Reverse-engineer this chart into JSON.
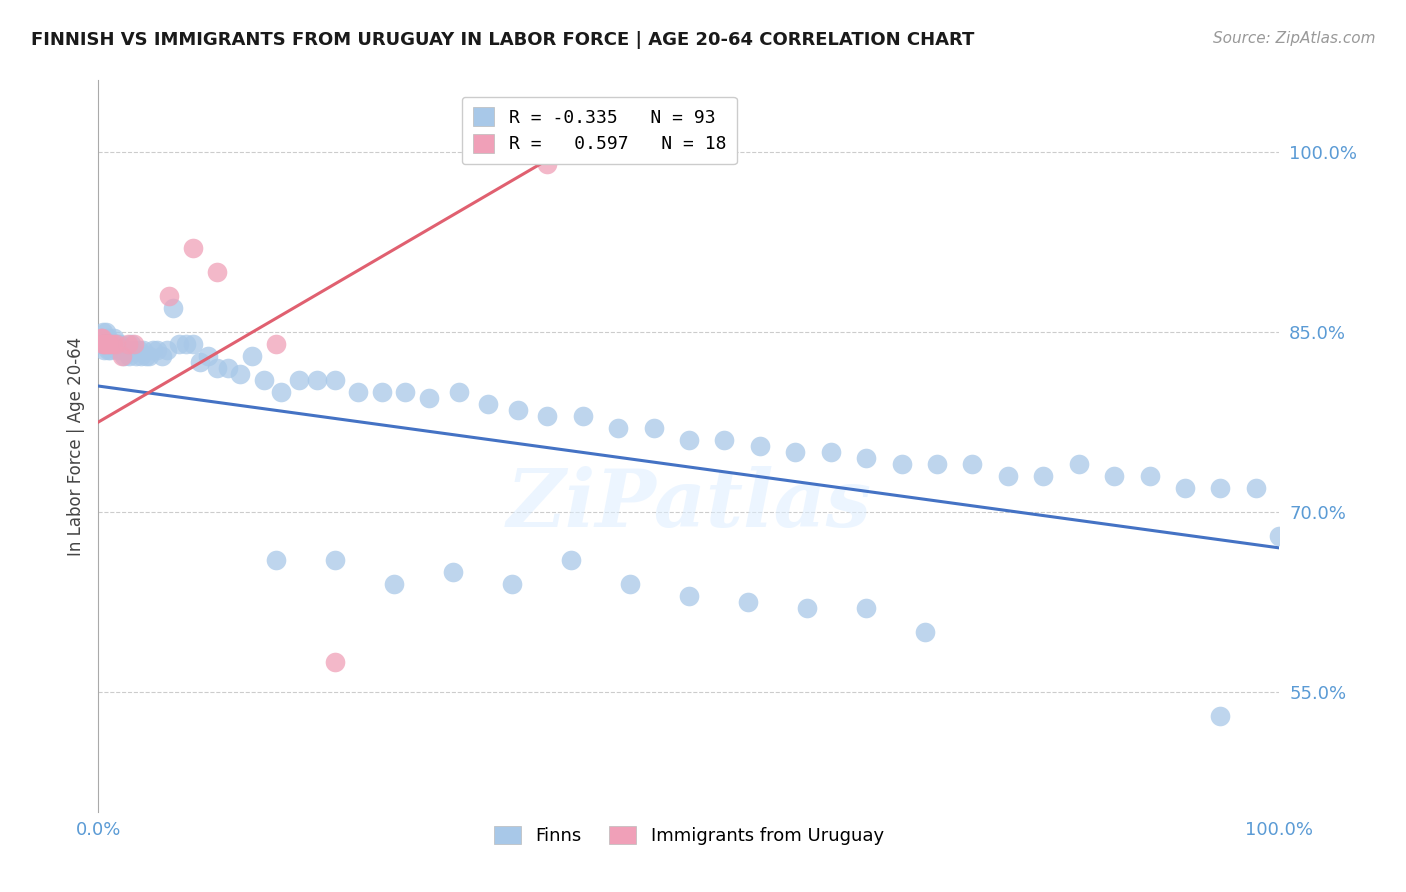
{
  "title": "FINNISH VS IMMIGRANTS FROM URUGUAY IN LABOR FORCE | AGE 20-64 CORRELATION CHART",
  "source": "Source: ZipAtlas.com",
  "ylabel": "In Labor Force | Age 20-64",
  "xlim": [
    0.0,
    1.0
  ],
  "ylim": [
    0.45,
    1.06
  ],
  "yticks": [
    0.55,
    0.7,
    0.85,
    1.0
  ],
  "ytick_labels": [
    "55.0%",
    "70.0%",
    "85.0%",
    "100.0%"
  ],
  "xticks": [
    0.0,
    1.0
  ],
  "xtick_labels": [
    "0.0%",
    "100.0%"
  ],
  "finns_color": "#a8c8e8",
  "uruguay_color": "#f0a0b8",
  "finns_line_color": "#4472c4",
  "uruguay_line_color": "#e06070",
  "watermark": "ZiPatlas",
  "finns_trendline_x": [
    0.0,
    1.0
  ],
  "finns_trendline_y": [
    0.805,
    0.67
  ],
  "uruguay_trendline_x": [
    0.0,
    0.4
  ],
  "uruguay_trendline_y": [
    0.775,
    1.005
  ],
  "finns_x": [
    0.002,
    0.003,
    0.004,
    0.005,
    0.005,
    0.006,
    0.006,
    0.007,
    0.008,
    0.008,
    0.009,
    0.01,
    0.011,
    0.012,
    0.013,
    0.014,
    0.015,
    0.016,
    0.017,
    0.018,
    0.02,
    0.022,
    0.024,
    0.026,
    0.028,
    0.03,
    0.032,
    0.034,
    0.036,
    0.038,
    0.04,
    0.043,
    0.046,
    0.05,
    0.054,
    0.058,
    0.063,
    0.068,
    0.074,
    0.08,
    0.086,
    0.093,
    0.1,
    0.11,
    0.12,
    0.13,
    0.14,
    0.155,
    0.17,
    0.185,
    0.2,
    0.22,
    0.24,
    0.26,
    0.28,
    0.305,
    0.33,
    0.355,
    0.38,
    0.41,
    0.44,
    0.47,
    0.5,
    0.53,
    0.56,
    0.59,
    0.62,
    0.65,
    0.68,
    0.71,
    0.74,
    0.77,
    0.8,
    0.83,
    0.86,
    0.89,
    0.92,
    0.95,
    0.98,
    1.0,
    0.15,
    0.2,
    0.25,
    0.3,
    0.35,
    0.4,
    0.45,
    0.5,
    0.55,
    0.6,
    0.65,
    0.7,
    0.95
  ],
  "finns_y": [
    0.84,
    0.845,
    0.85,
    0.84,
    0.835,
    0.85,
    0.84,
    0.84,
    0.845,
    0.835,
    0.84,
    0.835,
    0.84,
    0.84,
    0.845,
    0.84,
    0.84,
    0.835,
    0.84,
    0.84,
    0.835,
    0.83,
    0.835,
    0.83,
    0.84,
    0.835,
    0.83,
    0.835,
    0.83,
    0.835,
    0.83,
    0.83,
    0.835,
    0.835,
    0.83,
    0.835,
    0.87,
    0.84,
    0.84,
    0.84,
    0.825,
    0.83,
    0.82,
    0.82,
    0.815,
    0.83,
    0.81,
    0.8,
    0.81,
    0.81,
    0.81,
    0.8,
    0.8,
    0.8,
    0.795,
    0.8,
    0.79,
    0.785,
    0.78,
    0.78,
    0.77,
    0.77,
    0.76,
    0.76,
    0.755,
    0.75,
    0.75,
    0.745,
    0.74,
    0.74,
    0.74,
    0.73,
    0.73,
    0.74,
    0.73,
    0.73,
    0.72,
    0.72,
    0.72,
    0.68,
    0.66,
    0.66,
    0.64,
    0.65,
    0.64,
    0.66,
    0.64,
    0.63,
    0.625,
    0.62,
    0.62,
    0.6,
    0.53
  ],
  "uruguay_x": [
    0.002,
    0.003,
    0.004,
    0.005,
    0.006,
    0.008,
    0.01,
    0.012,
    0.015,
    0.02,
    0.025,
    0.03,
    0.06,
    0.08,
    0.1,
    0.15,
    0.2,
    0.38
  ],
  "uruguay_y": [
    0.845,
    0.845,
    0.84,
    0.84,
    0.84,
    0.84,
    0.84,
    0.84,
    0.84,
    0.83,
    0.84,
    0.84,
    0.88,
    0.92,
    0.9,
    0.84,
    0.575,
    0.99
  ],
  "legend_r_lines": [
    {
      "label": "R = -0.335   N = 93",
      "color": "#a8c8e8"
    },
    {
      "label": "R =   0.597   N = 18",
      "color": "#f0a0b8"
    }
  ]
}
